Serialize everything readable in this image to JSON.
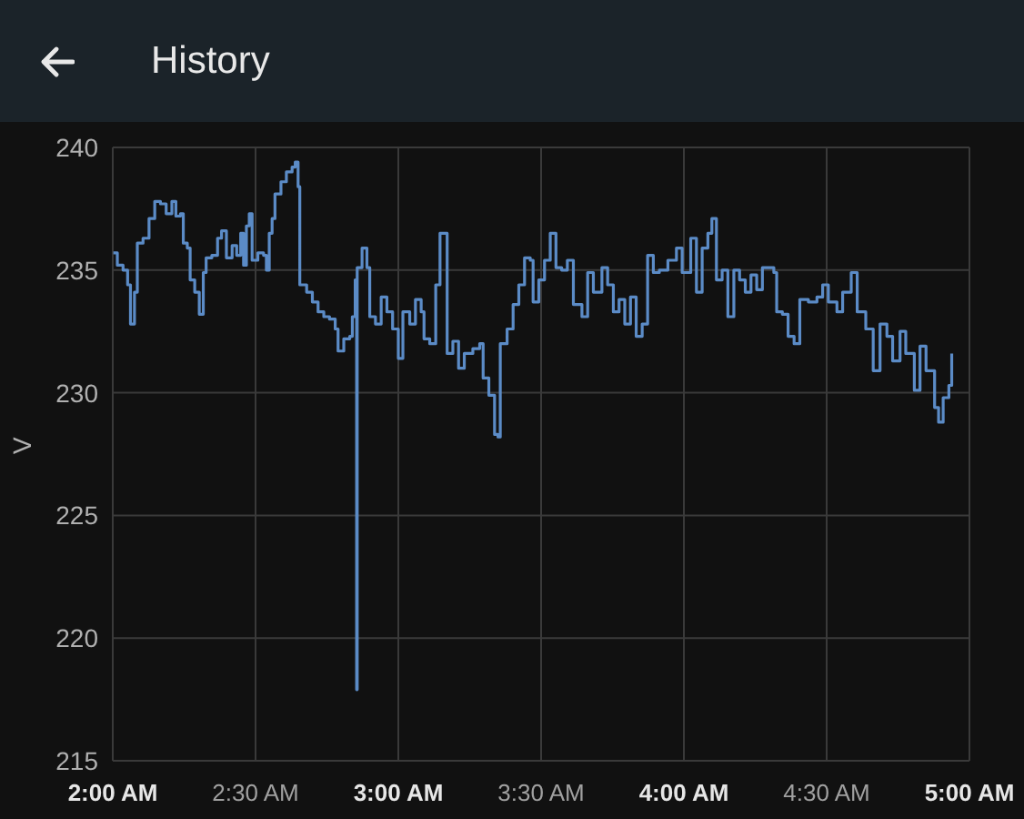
{
  "chart_data": {
    "type": "step",
    "title": "History",
    "ylabel": "V",
    "xlim": [
      2,
      5
    ],
    "xticks": [
      {
        "value": 2,
        "label": "2:00 AM"
      },
      {
        "value": 2.5,
        "label": "2:30 AM"
      },
      {
        "value": 3,
        "label": "3:00 AM"
      },
      {
        "value": 3.5,
        "label": "3:30 AM"
      },
      {
        "value": 4,
        "label": "4:00 AM"
      },
      {
        "value": 4.5,
        "label": "4:30 AM"
      },
      {
        "value": 5,
        "label": "5:00 AM"
      }
    ],
    "ylim": [
      215,
      240
    ],
    "yticks": [
      215,
      220,
      225,
      230,
      235,
      240
    ],
    "grid": true,
    "series": [
      {
        "color": "#5b8bc6",
        "x": [
          2.002,
          2.016,
          2.036,
          2.052,
          2.062,
          2.076,
          2.086,
          2.106,
          2.127,
          2.147,
          2.167,
          2.187,
          2.207,
          2.221,
          2.237,
          2.247,
          2.261,
          2.271,
          2.287,
          2.303,
          2.317,
          2.327,
          2.347,
          2.367,
          2.381,
          2.398,
          2.418,
          2.434,
          2.448,
          2.458,
          2.468,
          2.478,
          2.488,
          2.508,
          2.528,
          2.538,
          2.548,
          2.558,
          2.568,
          2.589,
          2.608,
          2.628,
          2.639,
          2.649,
          2.655,
          2.679,
          2.699,
          2.719,
          2.739,
          2.759,
          2.779,
          2.789,
          2.809,
          2.83,
          2.839,
          2.849,
          2.854,
          2.856,
          2.873,
          2.89,
          2.9,
          2.92,
          2.94,
          2.96,
          2.98,
          3.0,
          3.016,
          3.04,
          3.06,
          3.08,
          3.09,
          3.11,
          3.131,
          3.146,
          3.161,
          3.171,
          3.191,
          3.211,
          3.231,
          3.261,
          3.285,
          3.297,
          3.317,
          3.337,
          3.349,
          3.357,
          3.381,
          3.402,
          3.422,
          3.442,
          3.462,
          3.472,
          3.492,
          3.512,
          3.532,
          3.546,
          3.552,
          3.572,
          3.592,
          3.613,
          3.643,
          3.663,
          3.683,
          3.713,
          3.733,
          3.753,
          3.773,
          3.793,
          3.813,
          3.833,
          3.854,
          3.873,
          3.893,
          3.914,
          3.944,
          3.974,
          3.994,
          4.024,
          4.044,
          4.064,
          4.084,
          4.098,
          4.114,
          4.134,
          4.154,
          4.175,
          4.195,
          4.215,
          4.235,
          4.255,
          4.275,
          4.295,
          4.315,
          4.325,
          4.345,
          4.365,
          4.386,
          4.406,
          4.436,
          4.466,
          4.486,
          4.506,
          4.536,
          4.556,
          4.586,
          4.607,
          4.637,
          4.663,
          4.687,
          4.711,
          4.731,
          4.757,
          4.777,
          4.807,
          4.827,
          4.848,
          4.878,
          4.892,
          4.908,
          4.928,
          4.938
        ],
        "values": [
          235.7,
          235.2,
          235.0,
          234.4,
          232.8,
          234.1,
          236.1,
          236.3,
          237.1,
          237.8,
          237.7,
          237.3,
          237.8,
          237.2,
          237.3,
          236.1,
          235.9,
          234.6,
          234.1,
          233.2,
          234.9,
          235.5,
          235.6,
          236.3,
          236.6,
          235.5,
          236.0,
          235.6,
          236.5,
          235.2,
          236.8,
          237.3,
          235.4,
          235.7,
          235.6,
          235.0,
          236.5,
          237.1,
          238.1,
          238.6,
          239.0,
          239.2,
          239.4,
          238.4,
          234.4,
          234.1,
          233.7,
          233.3,
          233.1,
          233.0,
          232.6,
          231.7,
          232.2,
          232.3,
          233.1,
          234.6,
          217.9,
          235.1,
          235.9,
          235.1,
          233.1,
          232.8,
          233.9,
          233.3,
          232.6,
          231.4,
          233.3,
          232.8,
          233.8,
          233.3,
          232.2,
          232.0,
          234.4,
          236.5,
          236.5,
          231.6,
          232.1,
          231.0,
          231.6,
          231.8,
          232.0,
          230.6,
          229.9,
          228.3,
          228.2,
          232.0,
          232.6,
          233.6,
          234.4,
          235.5,
          235.4,
          233.7,
          234.6,
          235.4,
          236.5,
          236.5,
          235.1,
          235.0,
          235.4,
          233.6,
          233.1,
          234.9,
          234.1,
          235.1,
          234.4,
          233.3,
          233.8,
          232.8,
          233.9,
          232.3,
          232.8,
          235.6,
          234.9,
          235.0,
          235.4,
          235.9,
          234.9,
          236.3,
          234.1,
          235.9,
          236.5,
          237.1,
          234.6,
          235.0,
          233.1,
          235.0,
          234.6,
          234.1,
          234.8,
          234.2,
          235.1,
          235.1,
          234.9,
          233.3,
          233.2,
          232.3,
          232.0,
          233.8,
          233.7,
          233.9,
          234.4,
          233.7,
          233.3,
          234.1,
          234.9,
          233.3,
          232.6,
          230.9,
          232.8,
          232.3,
          231.3,
          232.5,
          231.6,
          230.1,
          231.9,
          230.9,
          229.4,
          228.8,
          229.8,
          230.3,
          231.6
        ]
      }
    ]
  }
}
